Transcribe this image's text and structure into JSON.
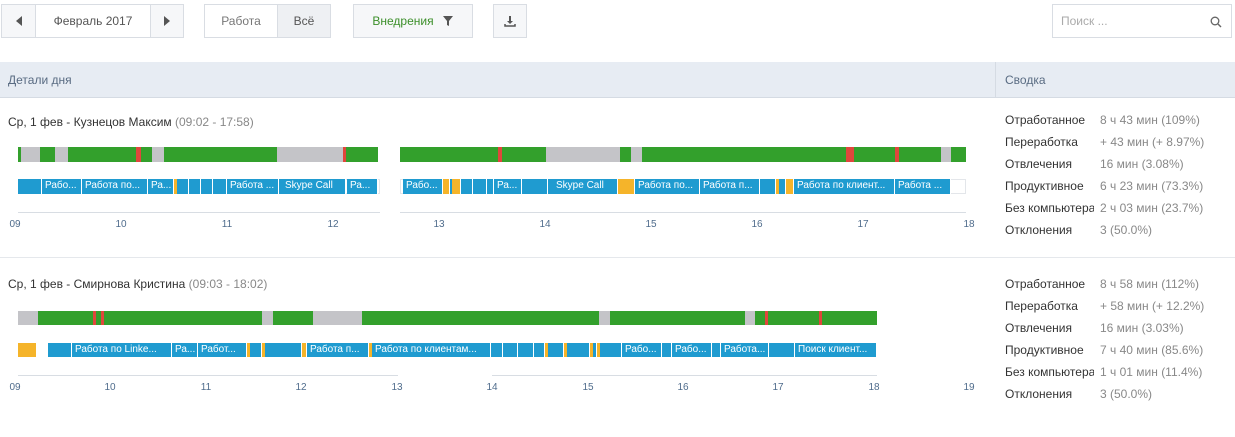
{
  "toolbar": {
    "period": "Февраль 2017",
    "filter_work": "Работа",
    "filter_all": "Всё",
    "implementations": "Внедрения",
    "search_placeholder": "Поиск ..."
  },
  "header": {
    "day_details": "Детали дня",
    "summary": "Сводка"
  },
  "records": [
    {
      "date": "Ср, 1 фев - Кузнецов Максим",
      "time": "(09:02 - 17:58)",
      "hours": [
        "09",
        "10",
        "11",
        "12",
        "13",
        "14",
        "15",
        "16",
        "17",
        "18"
      ],
      "app_labels": [
        "Рабо...",
        "Работа по...",
        "Ра...",
        "Работа ...",
        "Skype Call",
        "Ра...",
        "Рабо...",
        "Ра...",
        "Skype Call",
        "Работа по...",
        "Работа п...",
        "Работа по клиент...",
        "Работа ..."
      ],
      "stats": [
        {
          "label": "Отработанное",
          "value": "8 ч 43 мин (109%)"
        },
        {
          "label": "Переработка",
          "value": "+ 43 мин (+ 8.97%)"
        },
        {
          "label": "Отвлечения",
          "value": "16 мин (3.08%)"
        },
        {
          "label": "Продуктивное",
          "value": "6 ч 23 мин (73.3%)"
        },
        {
          "label": "Без компьютера",
          "value": "2 ч 03 мин (23.7%)"
        },
        {
          "label": "Отклонения",
          "value": "3 (50.0%)"
        }
      ]
    },
    {
      "date": "Ср, 1 фев - Смирнова Кристина",
      "time": "(09:03 - 18:02)",
      "hours": [
        "09",
        "10",
        "11",
        "12",
        "13",
        "14",
        "15",
        "16",
        "17",
        "18",
        "19"
      ],
      "app_labels": [
        "Работа по Linke...",
        "Ра...",
        "Работ...",
        "Работа п...",
        "Работа по клиентам...",
        "Рабо...",
        "Рабо...",
        "Работа...",
        "Поиск клиент..."
      ],
      "stats": [
        {
          "label": "Отработанное",
          "value": "8 ч 58 мин (112%)"
        },
        {
          "label": "Переработка",
          "value": "+ 58 мин (+ 12.2%)"
        },
        {
          "label": "Отвлечения",
          "value": "16 мин (3.03%)"
        },
        {
          "label": "Продуктивное",
          "value": "7 ч 40 мин (85.6%)"
        },
        {
          "label": "Без компьютера",
          "value": "1 ч 01 мин (11.4%)"
        },
        {
          "label": "Отклонения",
          "value": "3 (50.0%)"
        }
      ]
    }
  ],
  "colors": {
    "productive": "#33a02c",
    "idle": "#c4c4c8",
    "distraction": "#e0463c",
    "app": "#1f9bd0",
    "neutral": "#f5b42a"
  }
}
